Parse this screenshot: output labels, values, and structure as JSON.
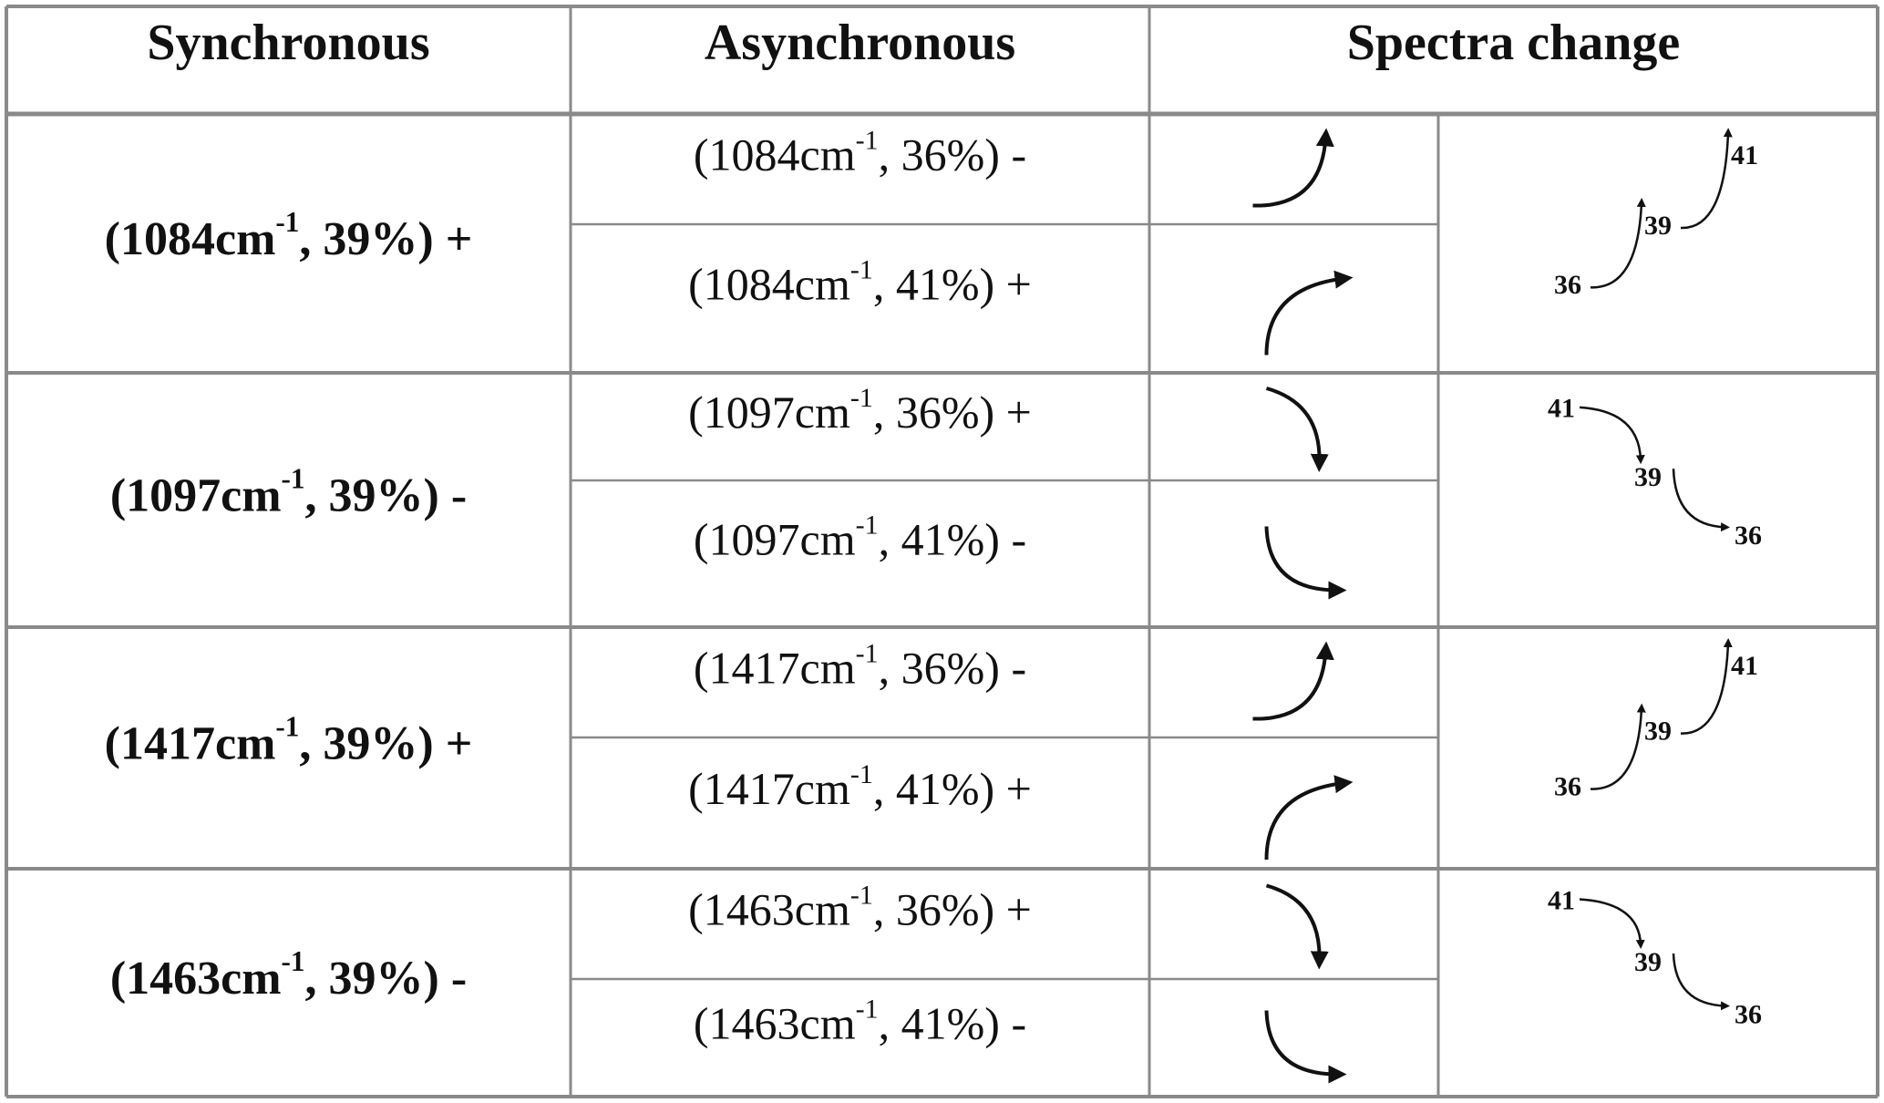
{
  "table": {
    "header": [
      "Synchronous",
      "Asynchronous",
      "Spectra change"
    ],
    "groups": [
      {
        "synchronous": {
          "text": "(1084cm",
          "sup": "-1",
          "tail": ", 39%) +"
        },
        "asynchronous": [
          {
            "text": "(1084cm",
            "sup": "-1",
            "tail": ", 36%) -"
          },
          {
            "text": "(1084cm",
            "sup": "-1",
            "tail": ", 41%) +"
          }
        ],
        "trend": [
          "36",
          "39",
          "41"
        ]
      },
      {
        "synchronous": {
          "text": "(1097cm",
          "sup": "-1",
          "tail": ", 39%) -"
        },
        "asynchronous": [
          {
            "text": "(1097cm",
            "sup": "-1",
            "tail": ", 36%) +"
          },
          {
            "text": "(1097cm",
            "sup": "-1",
            "tail": ", 41%) -"
          }
        ],
        "trend": [
          "41",
          "39",
          "36"
        ]
      },
      {
        "synchronous": {
          "text": "(1417cm",
          "sup": "-1",
          "tail": ", 39%) +"
        },
        "asynchronous": [
          {
            "text": "(1417cm",
            "sup": "-1",
            "tail": ", 36%) -"
          },
          {
            "text": "(1417cm",
            "sup": "-1",
            "tail": ", 41%) +"
          }
        ],
        "trend": [
          "36",
          "39",
          "41"
        ]
      },
      {
        "synchronous": {
          "text": "(1463cm",
          "sup": "-1",
          "tail": ", 39%) -"
        },
        "asynchronous": [
          {
            "text": "(1463cm",
            "sup": "-1",
            "tail": ", 36%) +"
          },
          {
            "text": "(1463cm",
            "sup": "-1",
            "tail": ", 41%) -"
          }
        ],
        "trend": [
          "41",
          "39",
          "36"
        ]
      }
    ]
  }
}
